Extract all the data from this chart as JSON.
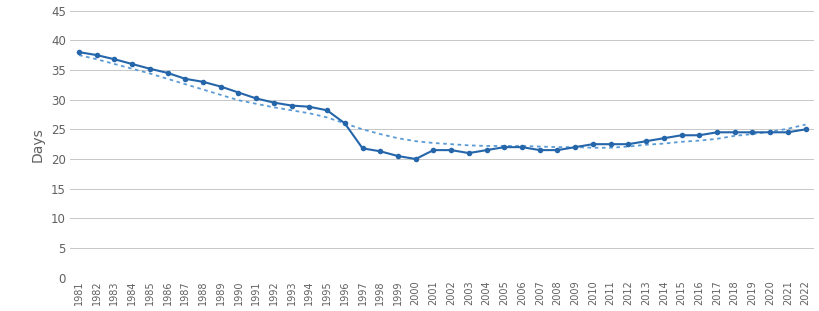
{
  "years": [
    1981,
    1982,
    1983,
    1984,
    1985,
    1986,
    1987,
    1988,
    1989,
    1990,
    1991,
    1992,
    1993,
    1994,
    1995,
    1996,
    1997,
    1998,
    1999,
    2000,
    2001,
    2002,
    2003,
    2004,
    2005,
    2006,
    2007,
    2008,
    2009,
    2010,
    2011,
    2012,
    2013,
    2014,
    2015,
    2016,
    2017,
    2018,
    2019,
    2020,
    2021,
    2022
  ],
  "values": [
    38.0,
    37.5,
    36.8,
    36.0,
    35.2,
    34.5,
    33.5,
    33.0,
    32.2,
    31.2,
    30.2,
    29.5,
    29.0,
    28.8,
    28.2,
    26.0,
    21.8,
    21.3,
    20.5,
    20.0,
    21.5,
    21.5,
    21.0,
    21.5,
    22.0,
    22.0,
    21.5,
    21.5,
    22.0,
    22.5,
    22.5,
    22.5,
    23.0,
    23.5,
    24.0,
    24.0,
    24.5,
    24.5,
    24.5,
    24.5,
    24.5,
    25.0
  ],
  "trend": [
    37.5,
    36.8,
    36.0,
    35.2,
    34.4,
    33.5,
    32.6,
    31.7,
    30.8,
    29.9,
    29.3,
    28.7,
    28.2,
    27.7,
    27.0,
    26.0,
    25.0,
    24.2,
    23.5,
    23.0,
    22.7,
    22.5,
    22.3,
    22.2,
    22.2,
    22.2,
    22.1,
    22.0,
    22.0,
    21.9,
    21.9,
    22.1,
    22.4,
    22.6,
    22.9,
    23.1,
    23.4,
    23.9,
    24.2,
    24.6,
    25.1,
    25.8
  ],
  "line_color": "#2566aa",
  "dot_color": "#2566aa",
  "trend_color": "#5b9bd5",
  "ylabel": "Days",
  "ylim": [
    0,
    45
  ],
  "yticks": [
    0,
    5,
    10,
    15,
    20,
    25,
    30,
    35,
    40,
    45
  ],
  "grid_color": "#c8c8c8",
  "bg_color": "#ffffff",
  "tick_label_color": "#606060",
  "ylabel_fontsize": 10,
  "ytick_fontsize": 8.5,
  "xtick_fontsize": 7.0
}
